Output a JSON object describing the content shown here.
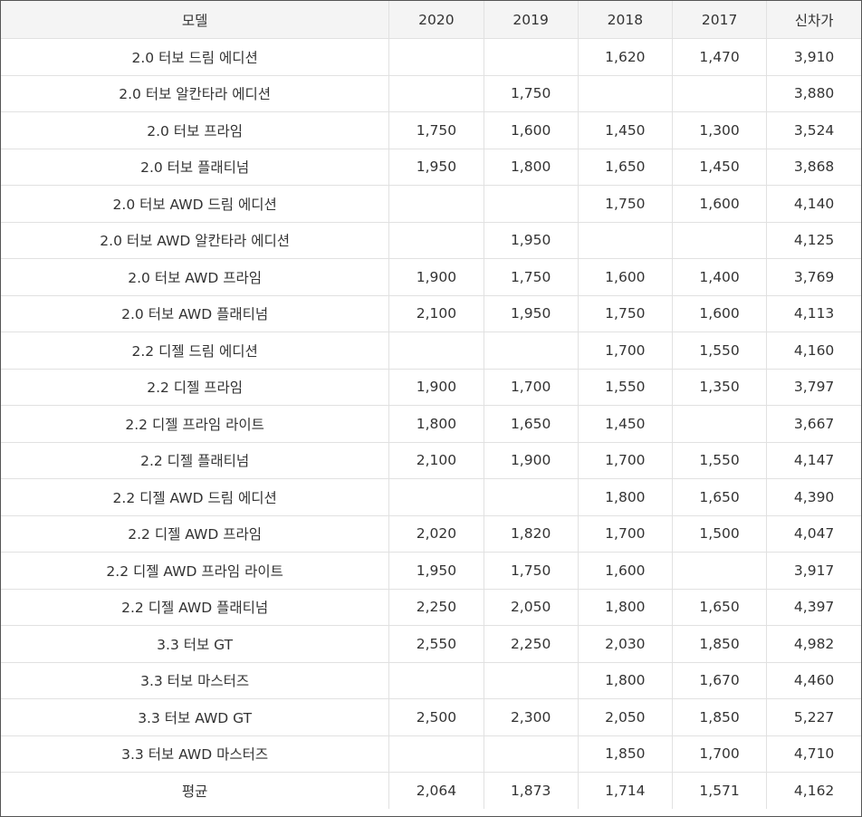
{
  "table": {
    "headers": [
      "모델",
      "2020",
      "2019",
      "2018",
      "2017",
      "신차가"
    ],
    "rows": [
      [
        "2.0 터보 드림 에디션",
        "",
        "",
        "1,620",
        "1,470",
        "3,910"
      ],
      [
        "2.0 터보 알칸타라 에디션",
        "",
        "1,750",
        "",
        "",
        "3,880"
      ],
      [
        "2.0 터보 프라임",
        "1,750",
        "1,600",
        "1,450",
        "1,300",
        "3,524"
      ],
      [
        "2.0 터보 플래티넘",
        "1,950",
        "1,800",
        "1,650",
        "1,450",
        "3,868"
      ],
      [
        "2.0 터보 AWD 드림 에디션",
        "",
        "",
        "1,750",
        "1,600",
        "4,140"
      ],
      [
        "2.0 터보 AWD 알칸타라 에디션",
        "",
        "1,950",
        "",
        "",
        "4,125"
      ],
      [
        "2.0 터보 AWD 프라임",
        "1,900",
        "1,750",
        "1,600",
        "1,400",
        "3,769"
      ],
      [
        "2.0 터보 AWD 플래티넘",
        "2,100",
        "1,950",
        "1,750",
        "1,600",
        "4,113"
      ],
      [
        "2.2 디젤 드림 에디션",
        "",
        "",
        "1,700",
        "1,550",
        "4,160"
      ],
      [
        "2.2 디젤 프라임",
        "1,900",
        "1,700",
        "1,550",
        "1,350",
        "3,797"
      ],
      [
        "2.2 디젤 프라임 라이트",
        "1,800",
        "1,650",
        "1,450",
        "",
        "3,667"
      ],
      [
        "2.2 디젤 플래티넘",
        "2,100",
        "1,900",
        "1,700",
        "1,550",
        "4,147"
      ],
      [
        "2.2 디젤 AWD 드림 에디션",
        "",
        "",
        "1,800",
        "1,650",
        "4,390"
      ],
      [
        "2.2 디젤 AWD 프라임",
        "2,020",
        "1,820",
        "1,700",
        "1,500",
        "4,047"
      ],
      [
        "2.2 디젤 AWD 프라임 라이트",
        "1,950",
        "1,750",
        "1,600",
        "",
        "3,917"
      ],
      [
        "2.2 디젤 AWD 플래티넘",
        "2,250",
        "2,050",
        "1,800",
        "1,650",
        "4,397"
      ],
      [
        "3.3 터보 GT",
        "2,550",
        "2,250",
        "2,030",
        "1,850",
        "4,982"
      ],
      [
        "3.3 터보 마스터즈",
        "",
        "",
        "1,800",
        "1,670",
        "4,460"
      ],
      [
        "3.3 터보 AWD GT",
        "2,500",
        "2,300",
        "2,050",
        "1,850",
        "5,227"
      ],
      [
        "3.3 터보 AWD 마스터즈",
        "",
        "",
        "1,850",
        "1,700",
        "4,710"
      ],
      [
        "평균",
        "2,064",
        "1,873",
        "1,714",
        "1,571",
        "4,162"
      ]
    ]
  }
}
